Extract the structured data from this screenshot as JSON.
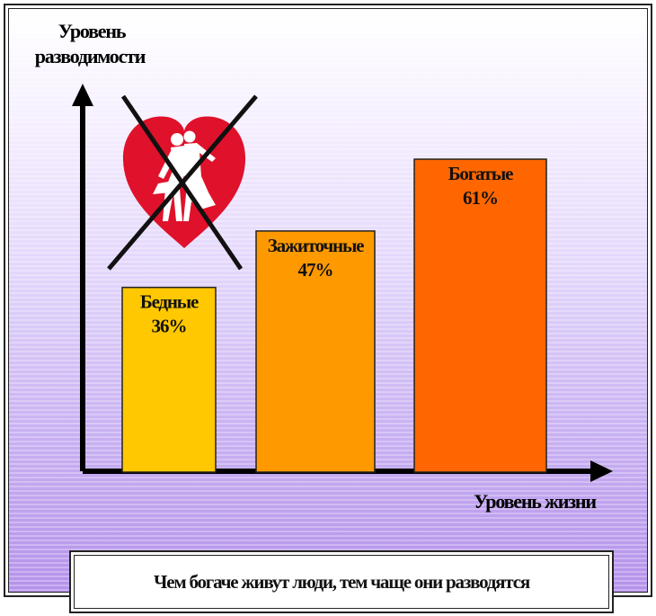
{
  "chart_data": {
    "type": "bar",
    "ylabel_lines": [
      "Уровень",
      "разводимости"
    ],
    "xlabel": "Уровень жизни",
    "caption": "Чем богаче живут люди, тем чаще они разводятся",
    "categories": [
      "Бедные",
      "Зажиточные",
      "Богатые"
    ],
    "values": [
      36,
      47,
      61
    ],
    "value_labels": [
      "36%",
      "47%",
      "61%"
    ],
    "unit": "%",
    "ylim": [
      0,
      61
    ],
    "grid": false,
    "legend": "none",
    "bar_colors": [
      "#FFC800",
      "#FF9900",
      "#FF6600"
    ],
    "axis_color": "#000000",
    "decoration": "crossed-out-heart-with-couple-icon"
  }
}
